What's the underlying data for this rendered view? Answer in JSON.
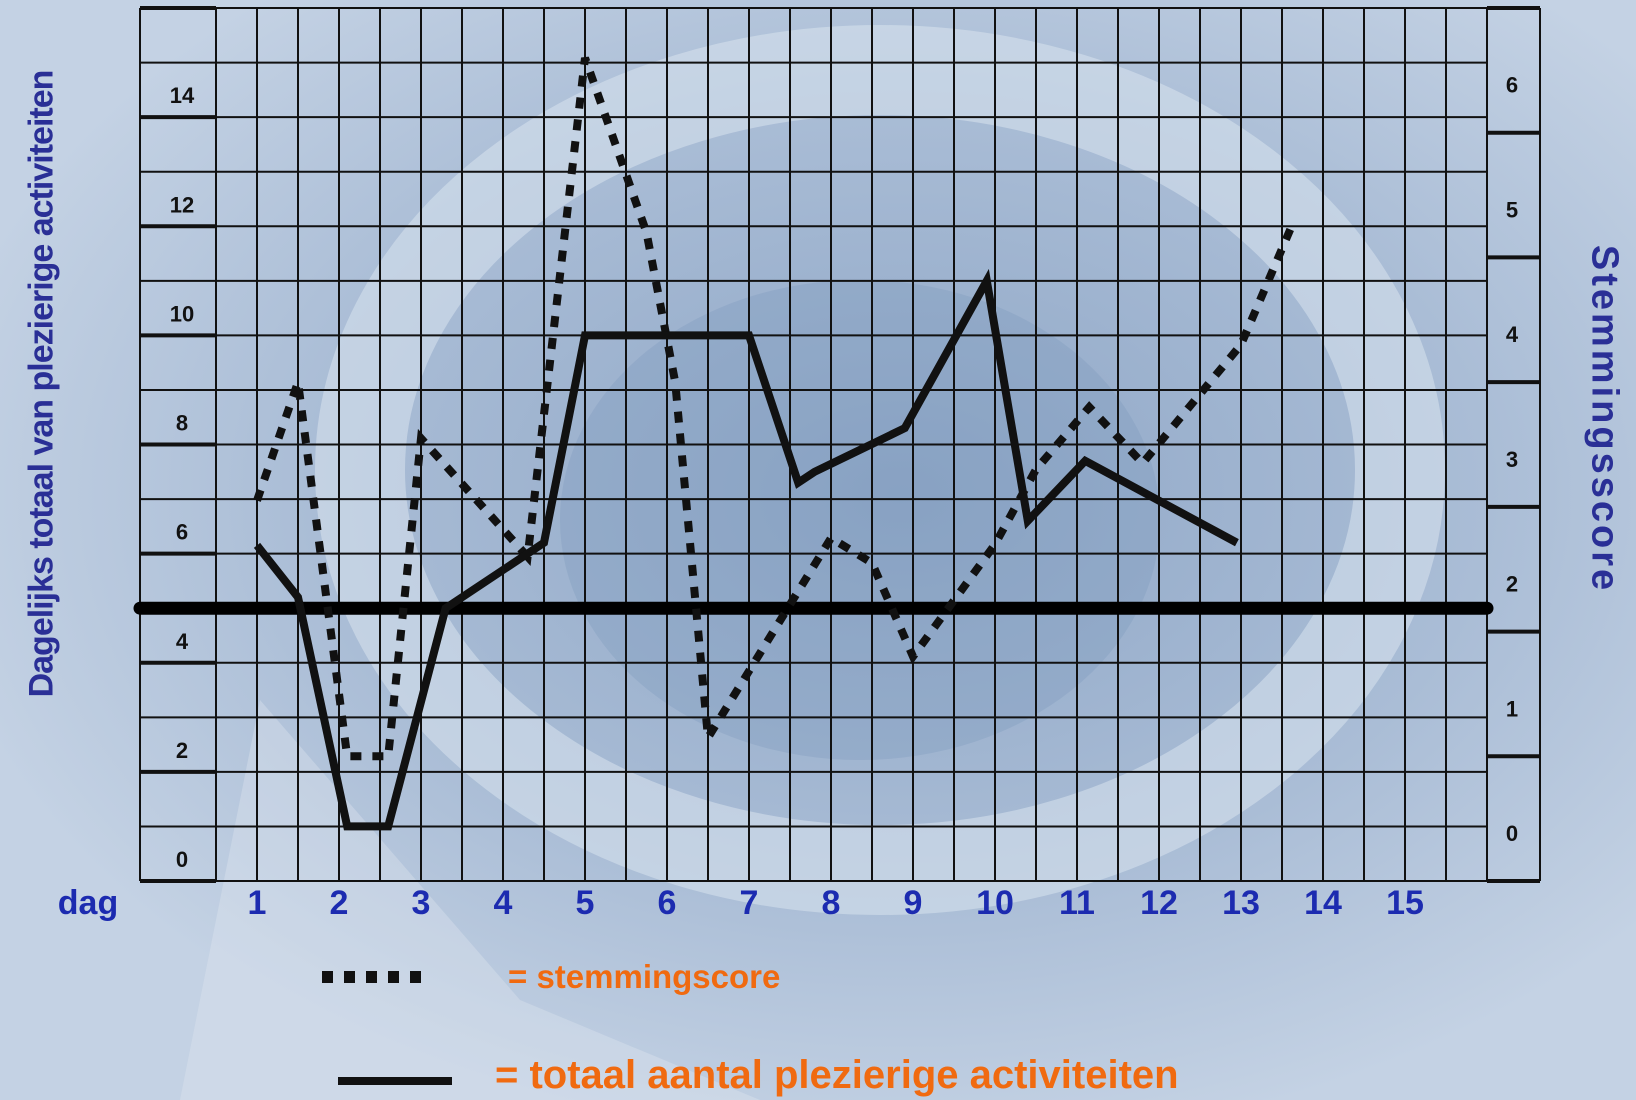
{
  "chart_data": {
    "type": "line",
    "x_label": "dag",
    "x": [
      1,
      2,
      3,
      4,
      5,
      6,
      7,
      8,
      9,
      10,
      11,
      12,
      13,
      14,
      15
    ],
    "left_axis": {
      "label": "Dagelijks totaal van plezierige activiteiten",
      "range": [
        0,
        16
      ],
      "ticks": [
        0,
        2,
        4,
        6,
        8,
        10,
        12,
        14,
        16
      ]
    },
    "right_axis": {
      "label": "Stemmingsscore",
      "range": [
        0,
        7
      ],
      "ticks": [
        0,
        1,
        2,
        3,
        4,
        5,
        6,
        7
      ]
    },
    "series": [
      {
        "name": "stemmingscore",
        "axis": "right",
        "style": "dotted",
        "points": [
          [
            1,
            3.05
          ],
          [
            1.5,
            4.0
          ],
          [
            2.1,
            1.0
          ],
          [
            2.6,
            1.0
          ],
          [
            3.0,
            3.55
          ],
          [
            4.3,
            2.6
          ],
          [
            5.0,
            6.6
          ],
          [
            5.75,
            5.2
          ],
          [
            6.1,
            4.0
          ],
          [
            6.5,
            1.15
          ],
          [
            8.0,
            2.75
          ],
          [
            8.5,
            2.55
          ],
          [
            9.0,
            1.8
          ],
          [
            10.0,
            2.7
          ],
          [
            10.5,
            3.3
          ],
          [
            11.15,
            3.8
          ],
          [
            11.8,
            3.35
          ],
          [
            13.0,
            4.3
          ],
          [
            13.65,
            5.3
          ]
        ]
      },
      {
        "name": "totaal aantal plezierige activiteiten",
        "axis": "left",
        "style": "solid",
        "points": [
          [
            1,
            6.15
          ],
          [
            1.5,
            5.2
          ],
          [
            2.1,
            1.0
          ],
          [
            2.6,
            1.0
          ],
          [
            3.3,
            5.0
          ],
          [
            4.5,
            6.2
          ],
          [
            5.0,
            10.0
          ],
          [
            7.0,
            10.0
          ],
          [
            7.6,
            7.3
          ],
          [
            7.8,
            7.5
          ],
          [
            8.9,
            8.3
          ],
          [
            9.9,
            11.0
          ],
          [
            10.4,
            6.6
          ],
          [
            11.1,
            7.7
          ],
          [
            12.95,
            6.2
          ]
        ]
      }
    ],
    "reference_line": {
      "axis": "left",
      "value": 5
    },
    "legend": [
      {
        "symbol": "dotted",
        "text": "= stemmingscore"
      },
      {
        "symbol": "solid",
        "text": "= totaal aantal plezierige activiteiten"
      }
    ],
    "colors": {
      "lines": "#111111",
      "grid": "#111111",
      "x_tick_labels": "#1c2bb0",
      "axis_titles": "#2a2f96",
      "legend_text": "#f06a10"
    }
  }
}
